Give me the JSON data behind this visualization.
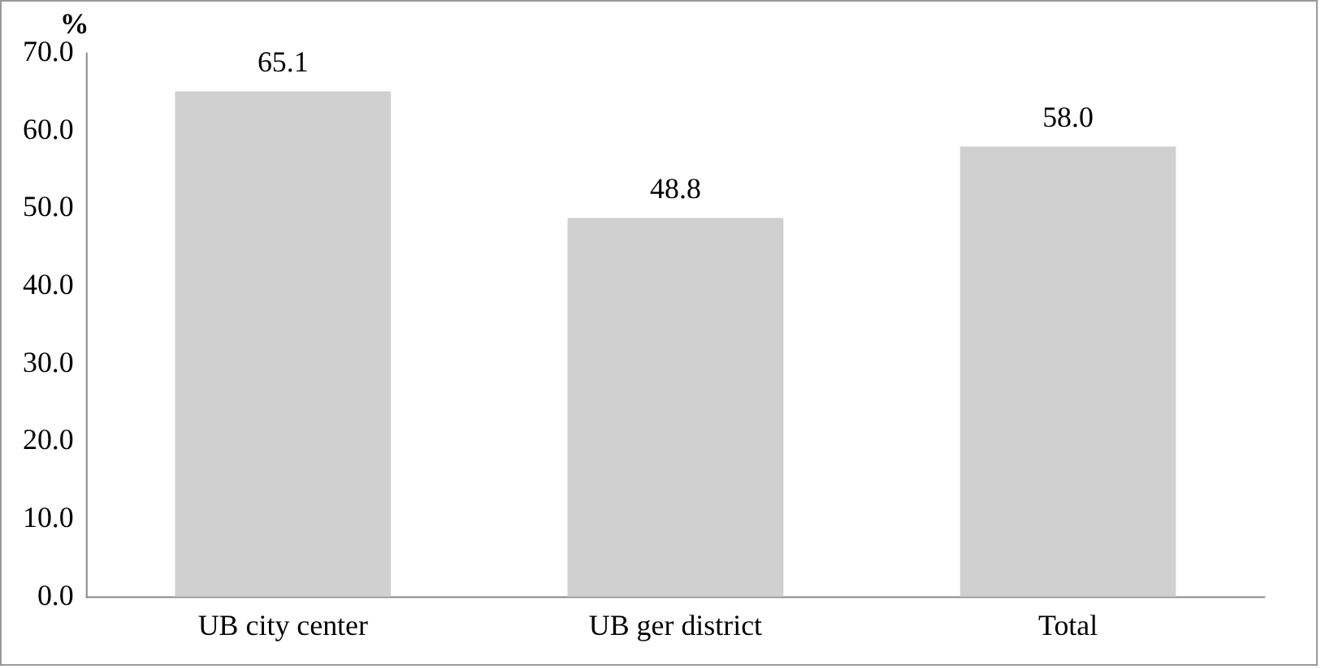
{
  "chart_data": {
    "type": "bar",
    "ylabel": "%",
    "categories": [
      "UB city center",
      "UB ger district",
      "Total"
    ],
    "values": [
      65.1,
      48.8,
      58.0
    ],
    "value_labels": [
      "65.1",
      "48.8",
      "58.0"
    ],
    "color": "#d0d0d0",
    "ylim": [
      0,
      70
    ],
    "yticks": [
      {
        "value": 0,
        "label": "0.0"
      },
      {
        "value": 10,
        "label": "10.0"
      },
      {
        "value": 20,
        "label": "20.0"
      },
      {
        "value": 30,
        "label": "30.0"
      },
      {
        "value": 40,
        "label": "40.0"
      },
      {
        "value": 50,
        "label": "50.0"
      },
      {
        "value": 60,
        "label": "60.0"
      },
      {
        "value": 70,
        "label": "70.0"
      }
    ],
    "grid": false,
    "legend": false
  }
}
